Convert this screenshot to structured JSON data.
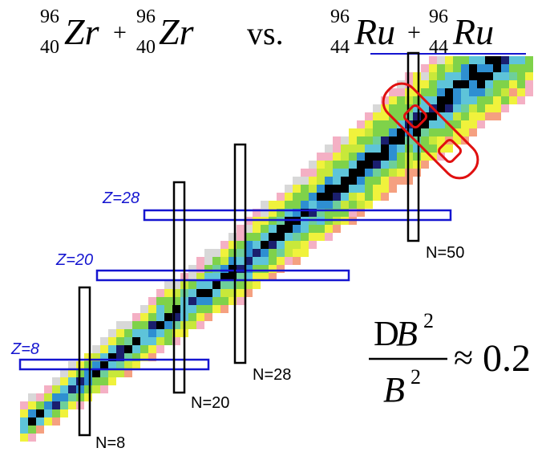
{
  "title": {
    "left": {
      "a1": "96",
      "z1": "40",
      "el1": "Zr",
      "plus": "+",
      "a2": "96",
      "z2": "40",
      "el2": "Zr"
    },
    "vs": "vs.",
    "right": {
      "a1": "96",
      "z1": "44",
      "el1": "Ru",
      "plus": "+",
      "a2": "96",
      "z2": "44",
      "el2": "Ru"
    }
  },
  "magic_z_labels": [
    "Z=28",
    "Z=20",
    "Z=8"
  ],
  "magic_n_labels": [
    "N=50",
    "N=28",
    "N=20",
    "N=8"
  ],
  "formula": {
    "numer_delta": "D",
    "numer_var": "B",
    "numer_exp": "2",
    "denom_var": "B",
    "denom_exp": "2",
    "approx": "≈",
    "value": "0.2"
  },
  "colors": {
    "stable": "#000000",
    "dark_blue": "#1a1f6e",
    "blue": "#2e8fd1",
    "cyan": "#5ec4d9",
    "teal_green": "#6ecf9a",
    "green": "#7fd24a",
    "yellow_green": "#c8e83a",
    "yellow": "#f0f23c",
    "pink": "#f4b0c4",
    "salmon": "#f5a080",
    "gray": "#d8d8d8",
    "magic_line": "#1515d0",
    "highlight": "#e01010"
  }
}
